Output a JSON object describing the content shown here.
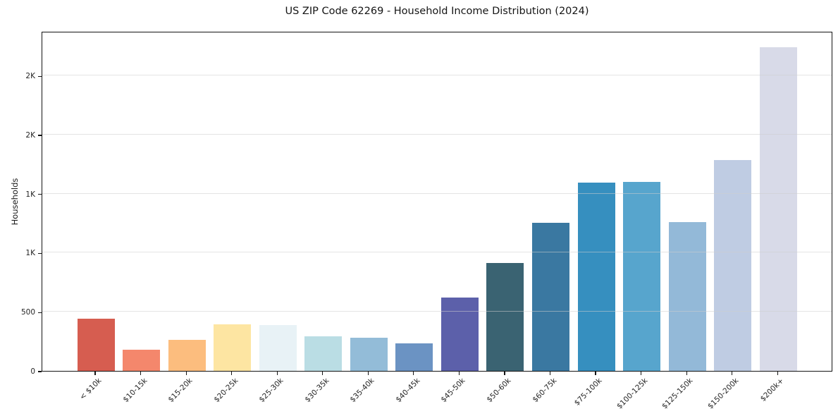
{
  "title": "US ZIP Code 62269 - Household Income Distribution (2024)",
  "chart_data": {
    "type": "bar",
    "title": "US ZIP Code 62269 - Household Income Distribution (2024)",
    "xlabel": "",
    "ylabel": "Households",
    "ylim": [
      0,
      2877
    ],
    "grid": true,
    "legend": "none",
    "categories": [
      "< $10k",
      "$10-15k",
      "$15-20k",
      "$20-25k",
      "$25-30k",
      "$30-35k",
      "$35-40k",
      "$40-45k",
      "$45-50k",
      "$50-60k",
      "$60-75k",
      "$75-100k",
      "$100-125k",
      "$125-150k",
      "$150-200k",
      "$200k+"
    ],
    "values": [
      440,
      180,
      260,
      397,
      386,
      291,
      279,
      235,
      620,
      912,
      1256,
      1594,
      1601,
      1259,
      1786,
      2741
    ],
    "bar_colors": [
      "#d65d50",
      "#f4876c",
      "#fcbd7e",
      "#fde5a2",
      "#e8f2f6",
      "#badde4",
      "#93bcd8",
      "#6b93c3",
      "#5c60aa",
      "#3a6372",
      "#3a78a1",
      "#368fbf",
      "#57a5cd",
      "#93b9d8",
      "#bfcce3",
      "#d8dae8"
    ],
    "yticks": [
      {
        "value": 0,
        "label": "0"
      },
      {
        "value": 500,
        "label": "500"
      },
      {
        "value": 1000,
        "label": "1K"
      },
      {
        "value": 1500,
        "label": "1K"
      },
      {
        "value": 2000,
        "label": "2K"
      },
      {
        "value": 2500,
        "label": "2K"
      }
    ],
    "axis_color": "#141414",
    "grid_color": "#d0d0d0",
    "background_color": "#ffffff"
  }
}
